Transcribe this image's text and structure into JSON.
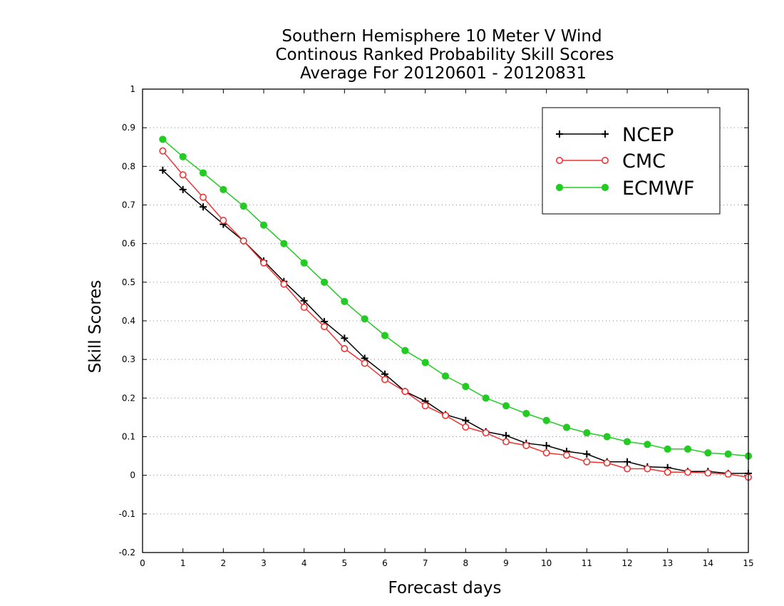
{
  "chart_data": {
    "type": "line",
    "title": [
      "Southern Hemisphere 10 Meter V Wind",
      "Continous Ranked Probability Skill Scores",
      "Average For 20120601 - 20120831"
    ],
    "xlabel": "Forecast days",
    "ylabel": "Skill Scores",
    "xlim": [
      0,
      15
    ],
    "ylim": [
      -0.2,
      1
    ],
    "xticks": [
      "0",
      "1",
      "2",
      "3",
      "4",
      "5",
      "6",
      "7",
      "8",
      "9",
      "10",
      "11",
      "12",
      "13",
      "14",
      "15"
    ],
    "yticks": [
      "-0.2",
      "-0.1",
      "0",
      "0.1",
      "0.2",
      "0.3",
      "0.4",
      "0.5",
      "0.6",
      "0.7",
      "0.8",
      "0.9",
      "1"
    ],
    "grid": "horizontal dotted",
    "legend_position": "top-right",
    "x": [
      0.5,
      1,
      1.5,
      2,
      2.5,
      3,
      3.5,
      4,
      4.5,
      5,
      5.5,
      6,
      6.5,
      7,
      7.5,
      8,
      8.5,
      9,
      9.5,
      10,
      10.5,
      11,
      11.5,
      12,
      12.5,
      13,
      13.5,
      14,
      14.5,
      15
    ],
    "series": [
      {
        "name": "NCEP",
        "color": "#000000",
        "marker": "plus",
        "values": [
          0.79,
          0.74,
          0.695,
          0.65,
          0.607,
          0.555,
          0.502,
          0.452,
          0.398,
          0.355,
          0.303,
          0.262,
          0.217,
          0.192,
          0.157,
          0.142,
          0.113,
          0.103,
          0.083,
          0.077,
          0.062,
          0.055,
          0.035,
          0.035,
          0.022,
          0.02,
          0.01,
          0.01,
          0.005,
          0.005
        ]
      },
      {
        "name": "CMC",
        "color": "#ee3333",
        "marker": "open-circle",
        "values": [
          0.84,
          0.778,
          0.72,
          0.66,
          0.607,
          0.55,
          0.495,
          0.435,
          0.385,
          0.328,
          0.29,
          0.248,
          0.217,
          0.18,
          0.155,
          0.125,
          0.11,
          0.087,
          0.077,
          0.058,
          0.052,
          0.035,
          0.032,
          0.017,
          0.017,
          0.008,
          0.008,
          0.006,
          0.003,
          -0.005
        ]
      },
      {
        "name": "ECMWF",
        "color": "#22cc22",
        "marker": "filled-circle",
        "values": [
          0.87,
          0.825,
          0.783,
          0.74,
          0.697,
          0.648,
          0.6,
          0.55,
          0.5,
          0.45,
          0.405,
          0.362,
          0.323,
          0.292,
          0.257,
          0.23,
          0.2,
          0.18,
          0.16,
          0.142,
          0.124,
          0.11,
          0.1,
          0.087,
          0.08,
          0.068,
          0.068,
          0.058,
          0.055,
          0.05
        ]
      }
    ]
  }
}
